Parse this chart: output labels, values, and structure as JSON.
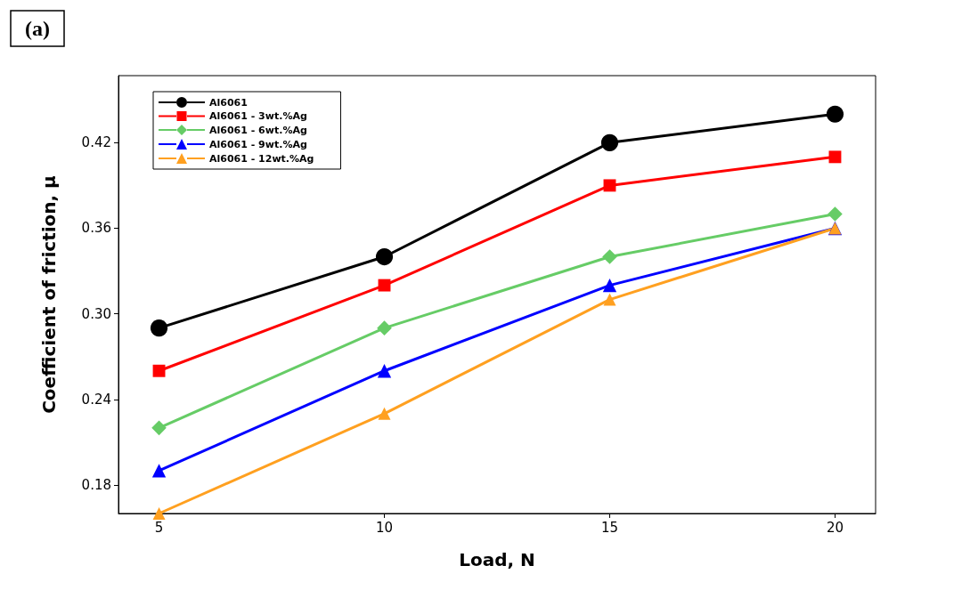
{
  "chart_data": {
    "type": "line",
    "title": "(a)",
    "xlabel": "Load, N",
    "ylabel": "Coefficient of friction, μ",
    "x": [
      5,
      10,
      15,
      20
    ],
    "series": [
      {
        "name": "Al6061",
        "color": "#000000",
        "marker": "circle",
        "values": [
          0.29,
          0.34,
          0.42,
          0.44
        ]
      },
      {
        "name": "Al6061 - 3wt.%Ag",
        "color": "#ff0000",
        "marker": "square",
        "values": [
          0.26,
          0.32,
          0.39,
          0.41
        ]
      },
      {
        "name": "Al6061 - 6wt.%Ag",
        "color": "#66cc66",
        "marker": "diamond",
        "values": [
          0.22,
          0.29,
          0.34,
          0.37
        ]
      },
      {
        "name": "Al6061 - 9wt.%Ag",
        "color": "#0000ff",
        "marker": "triangle",
        "values": [
          0.19,
          0.26,
          0.32,
          0.36
        ]
      },
      {
        "name": "Al6061 - 12wt.%Ag",
        "color": "#ffa020",
        "marker": "triangle",
        "values": [
          0.16,
          0.23,
          0.31,
          0.36
        ]
      }
    ],
    "xlim": [
      4.1,
      20.9
    ],
    "xticks": [
      5,
      10,
      15,
      20
    ],
    "ylim": [
      0.16,
      0.467
    ],
    "yticks": [
      0.18,
      0.24,
      {
        "value": 0.3,
        "label": "0.30"
      },
      0.36,
      0.42
    ],
    "grid": false,
    "legend": "top left",
    "line_style": "solid"
  }
}
